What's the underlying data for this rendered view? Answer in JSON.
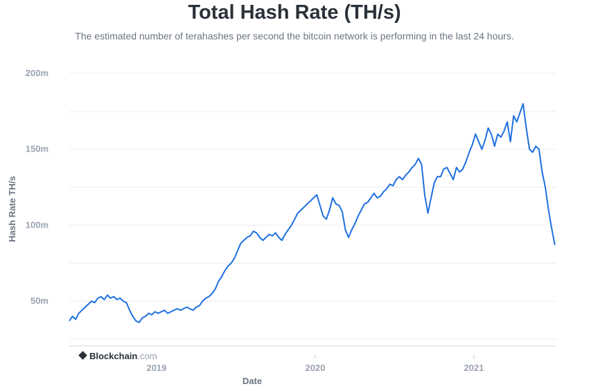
{
  "header": {
    "title": "Total Hash Rate (TH/s)",
    "subtitle": "The estimated number of terahashes per second the bitcoin network is performing in the last 24 hours."
  },
  "brand": {
    "name": "Blockchain",
    "suffix": ".com"
  },
  "colors": {
    "line": "#1d6fe0",
    "grid": "#e9ecf0",
    "text": "#2b3139"
  },
  "chart_data": {
    "type": "line",
    "title": "Total Hash Rate (TH/s)",
    "xlabel": "Date",
    "ylabel": "Hash Rate TH/s",
    "grid": true,
    "legend": "none",
    "xlim": [
      2018.45,
      2021.52
    ],
    "ylim": [
      20000000,
      200000000
    ],
    "yticks": [
      {
        "value": 50000000,
        "label": "50m"
      },
      {
        "value": 100000000,
        "label": "100m"
      },
      {
        "value": 150000000,
        "label": "150m"
      },
      {
        "value": 200000000,
        "label": "200m"
      }
    ],
    "xticks": [
      {
        "value": 2019.0,
        "label": "2019"
      },
      {
        "value": 2020.0,
        "label": "2020"
      },
      {
        "value": 2021.0,
        "label": "2021"
      }
    ],
    "series": [
      {
        "x": [
          2018.45,
          2018.47,
          2018.49,
          2018.51,
          2018.53,
          2018.55,
          2018.57,
          2018.59,
          2018.61,
          2018.63,
          2018.65,
          2018.67,
          2018.69,
          2018.71,
          2018.73,
          2018.75,
          2018.77,
          2018.79,
          2018.81,
          2018.83,
          2018.85,
          2018.87,
          2018.89,
          2018.91,
          2018.93,
          2018.95,
          2018.97,
          2018.99,
          2019.01,
          2019.03,
          2019.05,
          2019.07,
          2019.09,
          2019.11,
          2019.13,
          2019.15,
          2019.17,
          2019.19,
          2019.21,
          2019.23,
          2019.25,
          2019.27,
          2019.29,
          2019.31,
          2019.33,
          2019.35,
          2019.37,
          2019.39,
          2019.41,
          2019.43,
          2019.45,
          2019.47,
          2019.49,
          2019.51,
          2019.53,
          2019.55,
          2019.57,
          2019.59,
          2019.61,
          2019.63,
          2019.65,
          2019.67,
          2019.69,
          2019.71,
          2019.73,
          2019.75,
          2019.77,
          2019.79,
          2019.81,
          2019.83,
          2019.85,
          2019.87,
          2019.89,
          2019.91,
          2019.93,
          2019.95,
          2019.97,
          2019.99,
          2020.01,
          2020.03,
          2020.05,
          2020.07,
          2020.09,
          2020.11,
          2020.13,
          2020.15,
          2020.17,
          2020.19,
          2020.21,
          2020.23,
          2020.25,
          2020.27,
          2020.29,
          2020.31,
          2020.33,
          2020.35,
          2020.37,
          2020.39,
          2020.41,
          2020.43,
          2020.45,
          2020.47,
          2020.49,
          2020.51,
          2020.53,
          2020.55,
          2020.57,
          2020.59,
          2020.61,
          2020.63,
          2020.65,
          2020.67,
          2020.69,
          2020.71,
          2020.73,
          2020.75,
          2020.77,
          2020.79,
          2020.81,
          2020.83,
          2020.85,
          2020.87,
          2020.89,
          2020.91,
          2020.93,
          2020.95,
          2020.97,
          2020.99,
          2021.01,
          2021.03,
          2021.05,
          2021.07,
          2021.09,
          2021.11,
          2021.13,
          2021.15,
          2021.17,
          2021.19,
          2021.21,
          2021.23,
          2021.25,
          2021.27,
          2021.29,
          2021.31,
          2021.33,
          2021.35,
          2021.37,
          2021.39,
          2021.41,
          2021.43,
          2021.45,
          2021.47,
          2021.49,
          2021.51
        ],
        "y": [
          37000000,
          40000000,
          38000000,
          42000000,
          44000000,
          46000000,
          48000000,
          50000000,
          49000000,
          52000000,
          53000000,
          51000000,
          54000000,
          52000000,
          53000000,
          51000000,
          52000000,
          50000000,
          49000000,
          44000000,
          40000000,
          37000000,
          36000000,
          39000000,
          40000000,
          42000000,
          41000000,
          43000000,
          42000000,
          43000000,
          44000000,
          42000000,
          43000000,
          44000000,
          45000000,
          44000000,
          45000000,
          46000000,
          45000000,
          44000000,
          46000000,
          47000000,
          50000000,
          52000000,
          53000000,
          55000000,
          58000000,
          63000000,
          66000000,
          70000000,
          73000000,
          75000000,
          78000000,
          83000000,
          88000000,
          90000000,
          92000000,
          93000000,
          96000000,
          95000000,
          92000000,
          90000000,
          92000000,
          94000000,
          93000000,
          95000000,
          92000000,
          90000000,
          94000000,
          97000000,
          100000000,
          104000000,
          108000000,
          110000000,
          112000000,
          114000000,
          116000000,
          118000000,
          120000000,
          113000000,
          106000000,
          104000000,
          110000000,
          118000000,
          114000000,
          113000000,
          109000000,
          97000000,
          92000000,
          97000000,
          101000000,
          106000000,
          110000000,
          114000000,
          115000000,
          118000000,
          121000000,
          118000000,
          119000000,
          122000000,
          124000000,
          127000000,
          126000000,
          130000000,
          132000000,
          130000000,
          133000000,
          135000000,
          138000000,
          140000000,
          144000000,
          140000000,
          120000000,
          108000000,
          118000000,
          128000000,
          132000000,
          132000000,
          137000000,
          138000000,
          134000000,
          130000000,
          138000000,
          135000000,
          137000000,
          142000000,
          148000000,
          153000000,
          160000000,
          155000000,
          150000000,
          156000000,
          164000000,
          160000000,
          152000000,
          160000000,
          158000000,
          162000000,
          168000000,
          155000000,
          172000000,
          168000000,
          174000000,
          180000000,
          164000000,
          150000000,
          148000000,
          152000000,
          150000000,
          135000000,
          125000000,
          110000000,
          98000000,
          87000000
        ]
      }
    ]
  }
}
